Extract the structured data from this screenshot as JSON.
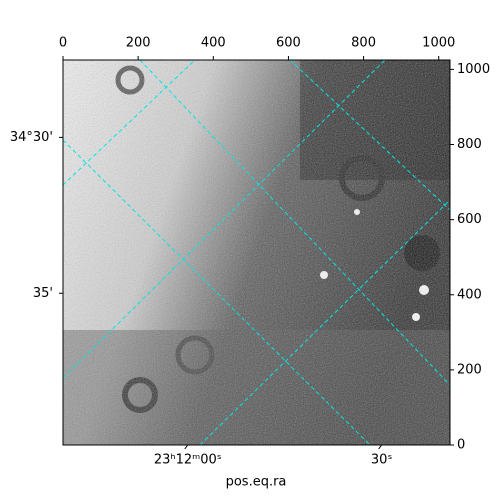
{
  "chart_data": {
    "type": "image",
    "xlabel": "pos.eq.ra",
    "xlim": [
      0,
      1030
    ],
    "ylim": [
      0,
      1025
    ],
    "xticks": [
      0,
      200,
      400,
      600,
      800,
      1000
    ],
    "yticks": [
      0,
      200,
      400,
      600,
      800,
      1000
    ],
    "ra_ticks": [
      {
        "value": 332,
        "label": "23ʰ12ᵐ00ˢ"
      },
      {
        "value": 848,
        "label": "30ˢ"
      }
    ],
    "dec_ticks": [
      {
        "value": 819,
        "label": "34°30'"
      },
      {
        "value": 404,
        "label": "35'"
      }
    ],
    "grid_color": "#00e5e5"
  }
}
